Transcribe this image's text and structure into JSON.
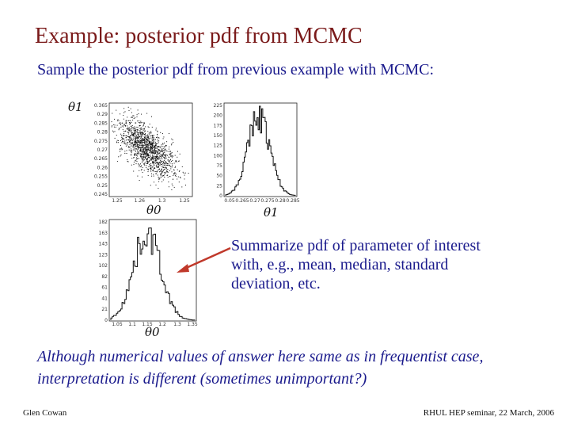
{
  "slide": {
    "title": "Example:  posterior pdf from MCMC",
    "subtitle": "Sample the posterior pdf from previous example with MCMC:",
    "summary_text": "Summarize pdf of parameter of interest with, e.g., mean, median, standard deviation, etc.",
    "bottom_text": "Although numerical values of answer here same as in frequentist case, interpretation is different (sometimes unimportant?)",
    "footer_left": "Glen Cowan",
    "footer_right": "RHUL HEP seminar, 22 March, 2006",
    "colors": {
      "title": "#7a1a1a",
      "text": "#1a1a8c",
      "arrow": "#c0392b"
    }
  },
  "plots": {
    "labels": {
      "theta1": "θ1",
      "theta0": "θ0"
    },
    "scatter": {
      "y_ticks": [
        "0.365",
        "0.29",
        "0.285",
        "0.28",
        "0.275",
        "0.27",
        "0.265",
        "0.26",
        "0.255",
        "0.25",
        "0.245"
      ],
      "x_ticks": [
        "1.25",
        "1.26",
        "1.3",
        "1.25"
      ]
    },
    "hist_theta1": {
      "y_ticks": [
        "225",
        "200",
        "175",
        "150",
        "125",
        "100",
        "75",
        "50",
        "25",
        "0"
      ],
      "x_ticks": [
        "0.05",
        "0.265",
        "0.27",
        "0.275",
        "0.28",
        "0.285"
      ]
    },
    "hist_theta0": {
      "y_ticks": [
        "182",
        "163",
        "143",
        "123",
        "102",
        "82",
        "61",
        "41",
        "21",
        "0"
      ],
      "x_ticks": [
        "1.05",
        "1.1",
        "1.15",
        "1.2",
        "1.3",
        "1.35"
      ]
    }
  }
}
